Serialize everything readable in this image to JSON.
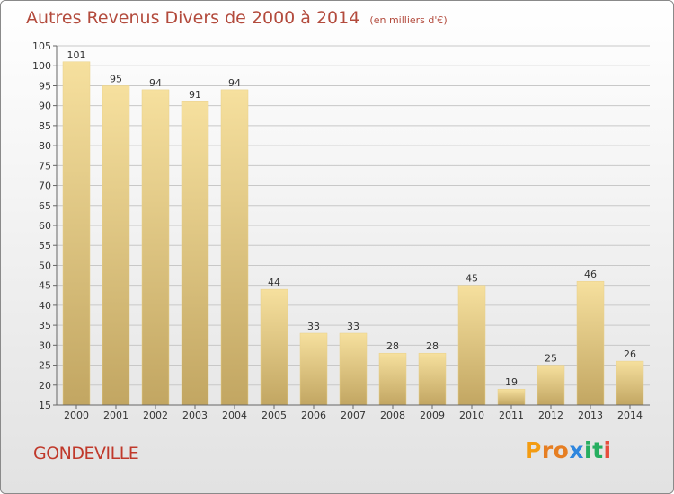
{
  "header": {
    "title": "Autres Revenus Divers de 2000 à 2014",
    "unit": "(en milliers d'€)"
  },
  "footer": {
    "town": "GONDEVILLE",
    "logo": [
      "P",
      "r",
      "o",
      "x",
      "i",
      "t",
      "i"
    ]
  },
  "colors": {
    "title": "#b34b3d",
    "town": "#c0392b",
    "bar_light": "#f6e09e",
    "bar_dark": "#c2a662",
    "grid": "#c8c8c8",
    "logo": [
      "#f39c12",
      "#e67e22",
      "#e67e22",
      "#2e86de",
      "#27ae60",
      "#27ae60",
      "#e74c3c"
    ]
  },
  "chart_data": {
    "type": "bar",
    "categories": [
      "2000",
      "2001",
      "2002",
      "2003",
      "2004",
      "2005",
      "2006",
      "2007",
      "2008",
      "2009",
      "2010",
      "2011",
      "2012",
      "2013",
      "2014"
    ],
    "values": [
      101,
      95,
      94,
      91,
      94,
      44,
      33,
      33,
      28,
      28,
      45,
      19,
      25,
      46,
      26
    ],
    "ylim": [
      15,
      105
    ],
    "yticks": [
      15,
      20,
      25,
      30,
      35,
      40,
      45,
      50,
      55,
      60,
      65,
      70,
      75,
      80,
      85,
      90,
      95,
      100,
      105
    ],
    "grid": true
  }
}
